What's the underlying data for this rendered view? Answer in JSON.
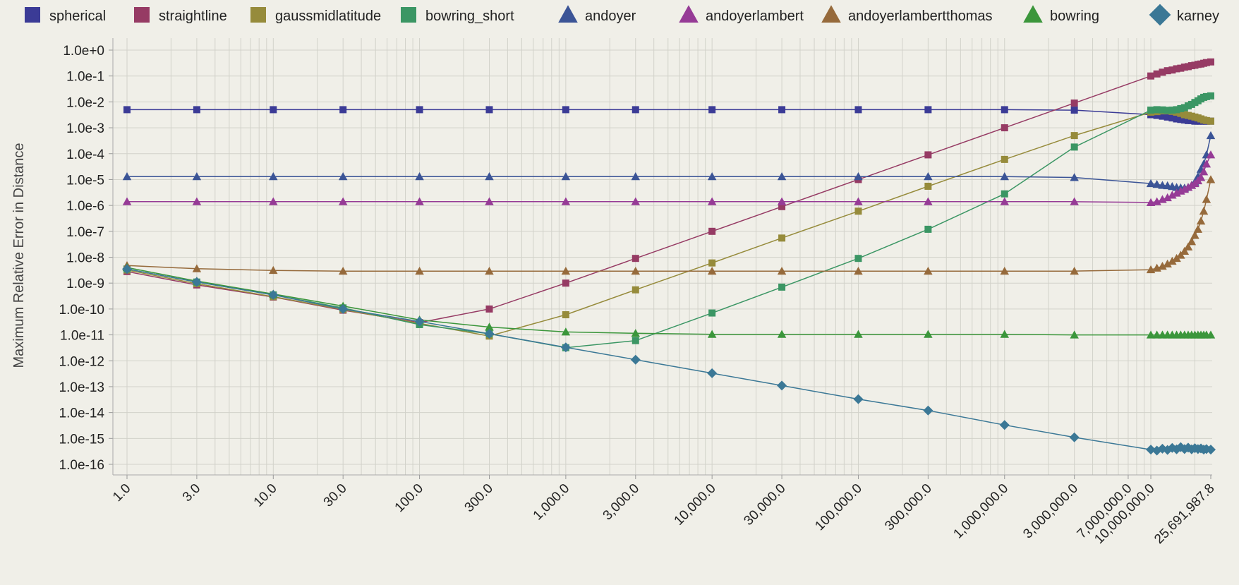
{
  "chart_data": {
    "type": "line",
    "ylabel": "Maximum Relative Error in Distance",
    "xlabel": "",
    "x_scale": "log",
    "y_scale": "log",
    "grid": true,
    "legend_position": "top",
    "xlim": [
      1.0,
      25691987.8
    ],
    "ylim": [
      1e-16,
      1.0
    ],
    "x_ticks": [
      1.0,
      3.0,
      10.0,
      30.0,
      100.0,
      300.0,
      1000.0,
      3000.0,
      10000.0,
      30000.0,
      100000.0,
      300000.0,
      1000000.0,
      3000000.0,
      7000000.0,
      10000000.0,
      25691987.8
    ],
    "x_tick_labels": [
      "1.0",
      "3.0",
      "10.0",
      "30.0",
      "100.0",
      "300.0",
      "1,000.0",
      "3,000.0",
      "10,000.0",
      "30,000.0",
      "100,000.0",
      "300,000.0",
      "1,000,000.0",
      "3,000,000.0",
      "7,000,000.0",
      "10,000,000.0",
      "25,691,987.8"
    ],
    "y_tick_labels": [
      "1.0e+0",
      "1.0e-1",
      "1.0e-2",
      "1.0e-3",
      "1.0e-4",
      "1.0e-5",
      "1.0e-6",
      "1.0e-7",
      "1.0e-8",
      "1.0e-9",
      "1.0e-10",
      "1.0e-11",
      "1.0e-12",
      "1.0e-13",
      "1.0e-14",
      "1.0e-15",
      "1.0e-16"
    ],
    "series": [
      {
        "name": "spherical",
        "marker": "square",
        "color": "#3b3b96",
        "points": [
          [
            1,
            0.005
          ],
          [
            3,
            0.005
          ],
          [
            10,
            0.005
          ],
          [
            30,
            0.005
          ],
          [
            100,
            0.005
          ],
          [
            300,
            0.005
          ],
          [
            1000,
            0.005
          ],
          [
            3000,
            0.005
          ],
          [
            10000,
            0.005
          ],
          [
            30000,
            0.005
          ],
          [
            100000,
            0.005
          ],
          [
            300000,
            0.005
          ],
          [
            1000000,
            0.005
          ],
          [
            3000000,
            0.0048
          ],
          [
            10000000,
            0.0032
          ],
          [
            11000000,
            0.003
          ],
          [
            12000000,
            0.0028
          ],
          [
            13000000,
            0.0026
          ],
          [
            14000000,
            0.0024
          ],
          [
            15000000,
            0.0022
          ],
          [
            16000000,
            0.0021
          ],
          [
            17000000,
            0.002
          ],
          [
            18000000,
            0.0019
          ],
          [
            19000000,
            0.0019
          ],
          [
            20000000,
            0.0018
          ],
          [
            21000000,
            0.0018
          ],
          [
            22000000,
            0.0018
          ],
          [
            23000000,
            0.0018
          ],
          [
            24000000,
            0.0018
          ],
          [
            25691987.8,
            0.0018
          ]
        ]
      },
      {
        "name": "straightline",
        "marker": "square",
        "color": "#963b64",
        "points": [
          [
            1,
            2.8e-09
          ],
          [
            3,
            8.5e-10
          ],
          [
            10,
            2.9e-10
          ],
          [
            30,
            9e-11
          ],
          [
            100,
            3e-11
          ],
          [
            300,
            1e-10
          ],
          [
            1000,
            1e-09
          ],
          [
            3000,
            9e-09
          ],
          [
            10000,
            1e-07
          ],
          [
            30000,
            9e-07
          ],
          [
            100000,
            1e-05
          ],
          [
            300000,
            9e-05
          ],
          [
            1000000,
            0.001
          ],
          [
            3000000,
            0.009
          ],
          [
            10000000,
            0.1
          ],
          [
            11000000,
            0.12
          ],
          [
            12000000,
            0.14
          ],
          [
            13000000,
            0.16
          ],
          [
            14000000,
            0.17
          ],
          [
            15000000,
            0.19
          ],
          [
            16000000,
            0.2
          ],
          [
            17000000,
            0.22
          ],
          [
            18000000,
            0.23
          ],
          [
            19000000,
            0.25
          ],
          [
            20000000,
            0.26
          ],
          [
            21000000,
            0.28
          ],
          [
            22000000,
            0.29
          ],
          [
            23000000,
            0.31
          ],
          [
            24000000,
            0.33
          ],
          [
            25691987.8,
            0.35
          ]
        ]
      },
      {
        "name": "gaussmidlatitude",
        "marker": "square",
        "color": "#968b3b",
        "points": [
          [
            1,
            3.2e-09
          ],
          [
            3,
            9.5e-10
          ],
          [
            10,
            3e-10
          ],
          [
            30,
            9.5e-11
          ],
          [
            100,
            2.8e-11
          ],
          [
            300,
            9e-12
          ],
          [
            1000,
            6e-11
          ],
          [
            3000,
            5.5e-10
          ],
          [
            10000,
            6e-09
          ],
          [
            30000,
            5.5e-08
          ],
          [
            100000,
            6e-07
          ],
          [
            300000,
            5.5e-06
          ],
          [
            1000000,
            6e-05
          ],
          [
            3000000,
            0.0005
          ],
          [
            10000000,
            0.004
          ],
          [
            11000000,
            0.0042
          ],
          [
            12000000,
            0.0045
          ],
          [
            13000000,
            0.0045
          ],
          [
            14000000,
            0.0043
          ],
          [
            15000000,
            0.004
          ],
          [
            16000000,
            0.0036
          ],
          [
            17000000,
            0.0032
          ],
          [
            18000000,
            0.003
          ],
          [
            19000000,
            0.0028
          ],
          [
            20000000,
            0.0026
          ],
          [
            21000000,
            0.0024
          ],
          [
            22000000,
            0.0022
          ],
          [
            23000000,
            0.002
          ],
          [
            24000000,
            0.0019
          ],
          [
            25691987.8,
            0.0018
          ]
        ]
      },
      {
        "name": "bowring_short",
        "marker": "square",
        "color": "#3b9664",
        "points": [
          [
            1,
            3.5e-09
          ],
          [
            3,
            1.1e-09
          ],
          [
            10,
            3.5e-10
          ],
          [
            30,
            1.1e-10
          ],
          [
            100,
            2.5e-11
          ],
          [
            300,
            1.1e-11
          ],
          [
            1000,
            3.2e-12
          ],
          [
            3000,
            6e-12
          ],
          [
            10000,
            7e-11
          ],
          [
            30000,
            7e-10
          ],
          [
            100000,
            9e-09
          ],
          [
            300000,
            1.2e-07
          ],
          [
            1000000,
            2.8e-06
          ],
          [
            3000000,
            0.00018
          ],
          [
            10000000,
            0.0048
          ],
          [
            11000000,
            0.005
          ],
          [
            12000000,
            0.0049
          ],
          [
            13000000,
            0.0047
          ],
          [
            14000000,
            0.0048
          ],
          [
            15000000,
            0.005
          ],
          [
            16000000,
            0.0055
          ],
          [
            17000000,
            0.006
          ],
          [
            18000000,
            0.007
          ],
          [
            19000000,
            0.008
          ],
          [
            20000000,
            0.0095
          ],
          [
            21000000,
            0.011
          ],
          [
            22000000,
            0.013
          ],
          [
            23000000,
            0.015
          ],
          [
            24000000,
            0.016
          ],
          [
            25691987.8,
            0.017
          ]
        ]
      },
      {
        "name": "andoyer",
        "marker": "triangle",
        "color": "#3b5496",
        "points": [
          [
            1,
            1.3e-05
          ],
          [
            3,
            1.3e-05
          ],
          [
            10,
            1.3e-05
          ],
          [
            30,
            1.3e-05
          ],
          [
            100,
            1.3e-05
          ],
          [
            300,
            1.3e-05
          ],
          [
            1000,
            1.3e-05
          ],
          [
            3000,
            1.3e-05
          ],
          [
            10000,
            1.3e-05
          ],
          [
            30000,
            1.3e-05
          ],
          [
            100000,
            1.3e-05
          ],
          [
            300000,
            1.3e-05
          ],
          [
            1000000,
            1.3e-05
          ],
          [
            3000000,
            1.2e-05
          ],
          [
            10000000,
            7e-06
          ],
          [
            11000000,
            6.5e-06
          ],
          [
            12000000,
            6e-06
          ],
          [
            13000000,
            5.8e-06
          ],
          [
            14000000,
            5.4e-06
          ],
          [
            15000000,
            5e-06
          ],
          [
            16000000,
            4.8e-06
          ],
          [
            17000000,
            4.7e-06
          ],
          [
            18000000,
            5e-06
          ],
          [
            19000000,
            6e-06
          ],
          [
            20000000,
            8e-06
          ],
          [
            21000000,
            1.3e-05
          ],
          [
            22000000,
            2.5e-05
          ],
          [
            23000000,
            4e-05
          ],
          [
            24000000,
            9e-05
          ],
          [
            25691987.8,
            0.0005
          ]
        ]
      },
      {
        "name": "andoyerlambert",
        "marker": "triangle",
        "color": "#963b96",
        "points": [
          [
            1,
            1.4e-06
          ],
          [
            3,
            1.4e-06
          ],
          [
            10,
            1.4e-06
          ],
          [
            30,
            1.4e-06
          ],
          [
            100,
            1.4e-06
          ],
          [
            300,
            1.4e-06
          ],
          [
            1000,
            1.4e-06
          ],
          [
            3000,
            1.4e-06
          ],
          [
            10000,
            1.4e-06
          ],
          [
            30000,
            1.4e-06
          ],
          [
            100000,
            1.4e-06
          ],
          [
            300000,
            1.4e-06
          ],
          [
            1000000,
            1.4e-06
          ],
          [
            3000000,
            1.4e-06
          ],
          [
            10000000,
            1.3e-06
          ],
          [
            11000000,
            1.4e-06
          ],
          [
            12000000,
            1.7e-06
          ],
          [
            13000000,
            2e-06
          ],
          [
            14000000,
            2.5e-06
          ],
          [
            15000000,
            3e-06
          ],
          [
            16000000,
            3.6e-06
          ],
          [
            17000000,
            4.2e-06
          ],
          [
            18000000,
            5e-06
          ],
          [
            19000000,
            6e-06
          ],
          [
            20000000,
            7e-06
          ],
          [
            21000000,
            9e-06
          ],
          [
            22000000,
            1.2e-05
          ],
          [
            23000000,
            2e-05
          ],
          [
            24000000,
            4e-05
          ],
          [
            25691987.8,
            9e-05
          ]
        ]
      },
      {
        "name": "andoyerlambertthomas",
        "marker": "triangle",
        "color": "#966a3b",
        "points": [
          [
            1,
            4.8e-09
          ],
          [
            3,
            3.6e-09
          ],
          [
            10,
            3.1e-09
          ],
          [
            30,
            2.9e-09
          ],
          [
            100,
            2.9e-09
          ],
          [
            300,
            2.9e-09
          ],
          [
            1000,
            2.9e-09
          ],
          [
            3000,
            2.9e-09
          ],
          [
            10000,
            2.9e-09
          ],
          [
            30000,
            2.9e-09
          ],
          [
            100000,
            2.9e-09
          ],
          [
            300000,
            2.9e-09
          ],
          [
            1000000,
            2.9e-09
          ],
          [
            3000000,
            2.9e-09
          ],
          [
            10000000,
            3.3e-09
          ],
          [
            11000000,
            3.8e-09
          ],
          [
            12000000,
            4.5e-09
          ],
          [
            13000000,
            5.5e-09
          ],
          [
            14000000,
            7e-09
          ],
          [
            15000000,
            9e-09
          ],
          [
            16000000,
            1.2e-08
          ],
          [
            17000000,
            1.7e-08
          ],
          [
            18000000,
            2.5e-08
          ],
          [
            19000000,
            4e-08
          ],
          [
            20000000,
            7e-08
          ],
          [
            21000000,
            1.2e-07
          ],
          [
            22000000,
            2.5e-07
          ],
          [
            23000000,
            6e-07
          ],
          [
            24000000,
            1.7e-06
          ],
          [
            25691987.8,
            1e-05
          ]
        ]
      },
      {
        "name": "bowring",
        "marker": "triangle",
        "color": "#3b963b",
        "points": [
          [
            1,
            4e-09
          ],
          [
            3,
            1.2e-09
          ],
          [
            10,
            3.8e-10
          ],
          [
            30,
            1.3e-10
          ],
          [
            100,
            3.8e-11
          ],
          [
            300,
            2e-11
          ],
          [
            1000,
            1.3e-11
          ],
          [
            3000,
            1.15e-11
          ],
          [
            10000,
            1.05e-11
          ],
          [
            30000,
            1.05e-11
          ],
          [
            100000,
            1.05e-11
          ],
          [
            300000,
            1.05e-11
          ],
          [
            1000000,
            1.05e-11
          ],
          [
            3000000,
            1e-11
          ],
          [
            10000000,
            1e-11
          ],
          [
            11000000,
            1e-11
          ],
          [
            12000000,
            1e-11
          ],
          [
            13000000,
            1e-11
          ],
          [
            14000000,
            1e-11
          ],
          [
            15000000,
            1e-11
          ],
          [
            16000000,
            1e-11
          ],
          [
            17000000,
            1e-11
          ],
          [
            18000000,
            1e-11
          ],
          [
            19000000,
            1e-11
          ],
          [
            20000000,
            1e-11
          ],
          [
            21000000,
            1e-11
          ],
          [
            22000000,
            1e-11
          ],
          [
            23000000,
            1e-11
          ],
          [
            24000000,
            1e-11
          ],
          [
            25691987.8,
            1e-11
          ]
        ]
      },
      {
        "name": "karney",
        "marker": "diamond",
        "color": "#3b7896",
        "points": [
          [
            1,
            3.5e-09
          ],
          [
            3,
            1.1e-09
          ],
          [
            10,
            3.5e-10
          ],
          [
            30,
            1e-10
          ],
          [
            100,
            3.3e-11
          ],
          [
            300,
            1.1e-11
          ],
          [
            1000,
            3.3e-12
          ],
          [
            3000,
            1.1e-12
          ],
          [
            10000,
            3.3e-13
          ],
          [
            30000,
            1.1e-13
          ],
          [
            100000,
            3.3e-14
          ],
          [
            300000,
            1.2e-14
          ],
          [
            1000000,
            3.3e-15
          ],
          [
            3000000,
            1.1e-15
          ],
          [
            10000000,
            3.7e-16
          ],
          [
            11000000,
            3.4e-16
          ],
          [
            12000000,
            4e-16
          ],
          [
            13000000,
            3.6e-16
          ],
          [
            14000000,
            4.3e-16
          ],
          [
            15000000,
            3.8e-16
          ],
          [
            16000000,
            4.6e-16
          ],
          [
            17000000,
            3.9e-16
          ],
          [
            18000000,
            4.4e-16
          ],
          [
            19000000,
            3.8e-16
          ],
          [
            20000000,
            4.2e-16
          ],
          [
            21000000,
            3.9e-16
          ],
          [
            22000000,
            4.1e-16
          ],
          [
            23000000,
            3.7e-16
          ],
          [
            24000000,
            3.9e-16
          ],
          [
            25691987.8,
            3.7e-16
          ]
        ]
      }
    ]
  }
}
